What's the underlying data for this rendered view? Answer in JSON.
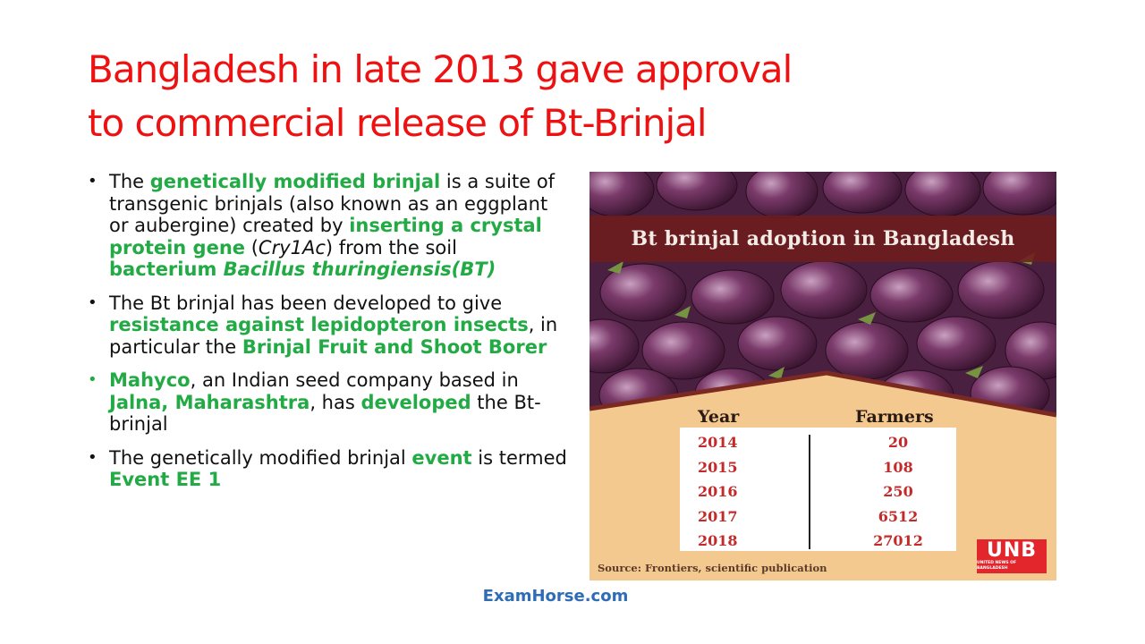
{
  "slide": {
    "title_line1": "Bangladesh in late 2013 gave approval",
    "title_line2": "to commercial release of Bt-Brinjal"
  },
  "bullets": [
    {
      "t1": "The ",
      "g1": "genetically modified brinjal",
      "t2": " is a suite of transgenic brinjals (also known as an eggplant or aubergine) created by ",
      "g2": "inserting a crystal protein gene",
      "t3": " (",
      "i1": "Cry1Ac",
      "t4": ") from the soil ",
      "g3": "bacterium ",
      "gi1": "Bacillus thuringiensis(BT)"
    },
    {
      "t1": "The Bt brinjal has been developed to give ",
      "g1": "resistance against lepidopteron insects",
      "t2": ", in particular the ",
      "g2": "Brinjal Fruit and Shoot Borer"
    },
    {
      "g1": "Mahyco",
      "t1": ", an Indian seed company based in ",
      "g2": "Jalna, Maharashtra",
      "t2": ", has ",
      "g3": "developed",
      "t3": " the Bt-brinjal"
    },
    {
      "t1": "The genetically modified brinjal ",
      "g1": "event",
      "t2": " is termed ",
      "g2": "Event EE 1"
    }
  ],
  "figure": {
    "banner_title": "Bt brinjal adoption in Bangladesh",
    "table": {
      "headers": [
        "Year",
        "Farmers"
      ],
      "years": [
        "2014",
        "2015",
        "2016",
        "2017",
        "2018"
      ],
      "farmers": [
        "20",
        "108",
        "250",
        "6512",
        "27012"
      ]
    },
    "source": "Source: Frontiers, scientific publication",
    "logo_text": "UNB",
    "logo_subtext": "UNITED NEWS OF BANGLADESH"
  },
  "footer": {
    "text": "ExamHorse.com"
  },
  "colors": {
    "title": "#ee1111",
    "highlight": "#22aa44",
    "footer": "#2e6db5",
    "logo": "#e3262b"
  }
}
